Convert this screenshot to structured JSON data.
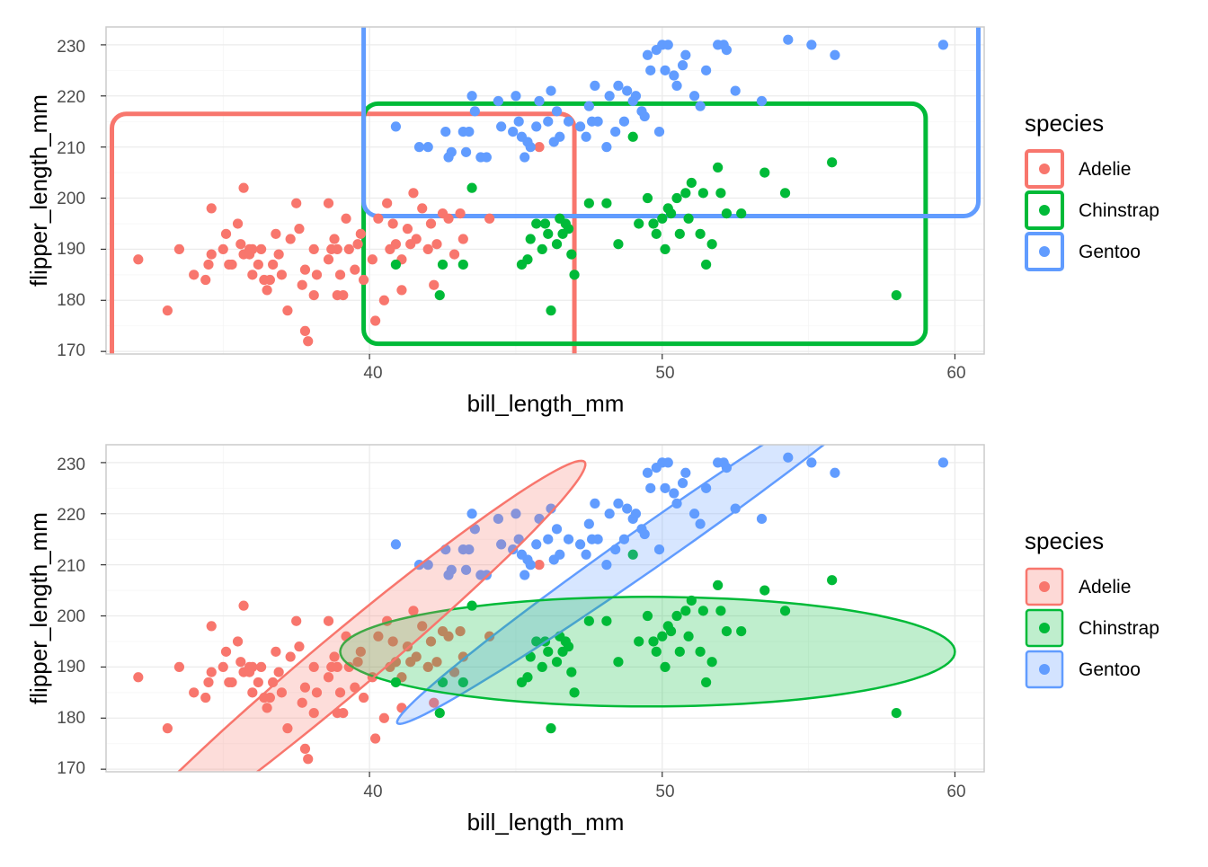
{
  "colors": {
    "Adelie": "#F8766D",
    "Chinstrap": "#00BA38",
    "Gentoo": "#619CFF",
    "grid_major": "#EBEBEB",
    "grid_minor": "#F5F5F5",
    "panel_border": "#CCCCCC",
    "axis_text": "#4D4D4D"
  },
  "chart_data": [
    {
      "type": "scatter",
      "annotation": "rounded bounding rectangles per species",
      "xlabel": "bill_length_mm",
      "ylabel": "flipper_length_mm",
      "xlim": [
        31.0,
        61.0
      ],
      "ylim": [
        169.5,
        233.5
      ],
      "x_ticks": [
        40,
        50,
        60
      ],
      "y_ticks": [
        170,
        180,
        190,
        200,
        210,
        220,
        230
      ],
      "grid": true,
      "legend": {
        "title": "species",
        "position": "right",
        "entries": [
          "Adelie",
          "Chinstrap",
          "Gentoo"
        ]
      },
      "regions": [
        {
          "series": "Adelie",
          "x": [
            31.2,
            47.0
          ],
          "y": [
            166.0,
            216.5
          ]
        },
        {
          "series": "Chinstrap",
          "x": [
            39.8,
            59.0
          ],
          "y": [
            171.5,
            218.5
          ]
        },
        {
          "series": "Gentoo",
          "x": [
            39.8,
            60.8
          ],
          "y": [
            196.5,
            237.0
          ]
        }
      ]
    },
    {
      "type": "scatter",
      "annotation": "filled confidence ellipses per species",
      "xlabel": "bill_length_mm",
      "ylabel": "flipper_length_mm",
      "xlim": [
        31.0,
        61.0
      ],
      "ylim": [
        169.5,
        233.5
      ],
      "x_ticks": [
        40,
        50,
        60
      ],
      "y_ticks": [
        170,
        180,
        190,
        200,
        210,
        220,
        230
      ],
      "grid": true,
      "legend": {
        "title": "species",
        "position": "right",
        "entries": [
          "Adelie",
          "Chinstrap",
          "Gentoo"
        ]
      },
      "ellipses": [
        {
          "series": "Adelie",
          "center": [
            39.0,
            190.0
          ],
          "a": 10.9,
          "b": 10.5,
          "angle_deg": 40
        },
        {
          "series": "Chinstrap",
          "center": [
            49.5,
            193.0
          ],
          "a": 10.5,
          "b": 19.5,
          "angle_deg": 0
        },
        {
          "series": "Gentoo",
          "center": [
            49.8,
            214.5
          ],
          "a": 10.8,
          "b": 7.4,
          "angle_deg": 35
        }
      ]
    }
  ],
  "points": {
    "Adelie": [
      [
        32.1,
        188
      ],
      [
        33.1,
        178
      ],
      [
        33.5,
        190
      ],
      [
        34.0,
        185
      ],
      [
        34.4,
        184
      ],
      [
        34.5,
        187
      ],
      [
        34.6,
        198
      ],
      [
        34.6,
        189
      ],
      [
        35.0,
        190
      ],
      [
        35.1,
        193
      ],
      [
        35.2,
        187
      ],
      [
        35.3,
        187
      ],
      [
        35.5,
        195
      ],
      [
        35.6,
        191
      ],
      [
        35.7,
        189
      ],
      [
        35.7,
        202
      ],
      [
        35.9,
        190
      ],
      [
        35.9,
        189
      ],
      [
        36.0,
        185
      ],
      [
        36.0,
        190
      ],
      [
        36.2,
        187
      ],
      [
        36.3,
        190
      ],
      [
        36.4,
        184
      ],
      [
        36.5,
        182
      ],
      [
        36.6,
        184
      ],
      [
        36.7,
        187
      ],
      [
        36.8,
        193
      ],
      [
        36.9,
        189
      ],
      [
        37.0,
        185
      ],
      [
        37.2,
        178
      ],
      [
        37.3,
        192
      ],
      [
        37.5,
        199
      ],
      [
        37.6,
        194
      ],
      [
        37.7,
        183
      ],
      [
        37.8,
        174
      ],
      [
        37.8,
        186
      ],
      [
        37.9,
        172
      ],
      [
        38.1,
        181
      ],
      [
        38.1,
        190
      ],
      [
        38.2,
        185
      ],
      [
        38.6,
        188
      ],
      [
        38.6,
        199
      ],
      [
        38.7,
        190
      ],
      [
        38.8,
        192
      ],
      [
        38.9,
        181
      ],
      [
        38.9,
        190
      ],
      [
        39.0,
        185
      ],
      [
        39.1,
        181
      ],
      [
        39.2,
        196
      ],
      [
        39.3,
        190
      ],
      [
        39.5,
        186
      ],
      [
        39.6,
        191
      ],
      [
        39.7,
        193
      ],
      [
        39.8,
        184
      ],
      [
        40.1,
        188
      ],
      [
        40.2,
        176
      ],
      [
        40.3,
        196
      ],
      [
        40.5,
        180
      ],
      [
        40.6,
        199
      ],
      [
        40.7,
        190
      ],
      [
        40.8,
        195
      ],
      [
        40.9,
        191
      ],
      [
        41.1,
        188
      ],
      [
        41.1,
        182
      ],
      [
        41.3,
        194
      ],
      [
        41.4,
        191
      ],
      [
        41.5,
        201
      ],
      [
        41.6,
        192
      ],
      [
        41.8,
        198
      ],
      [
        42.0,
        190
      ],
      [
        42.1,
        195
      ],
      [
        42.2,
        183
      ],
      [
        42.3,
        191
      ],
      [
        42.5,
        197
      ],
      [
        42.7,
        196
      ],
      [
        42.9,
        189
      ],
      [
        43.1,
        197
      ],
      [
        43.2,
        192
      ],
      [
        44.1,
        196
      ],
      [
        45.8,
        210
      ]
    ],
    "Chinstrap": [
      [
        40.9,
        187
      ],
      [
        42.4,
        181
      ],
      [
        42.5,
        187
      ],
      [
        43.2,
        187
      ],
      [
        43.5,
        202
      ],
      [
        45.2,
        187
      ],
      [
        45.4,
        188
      ],
      [
        45.5,
        192
      ],
      [
        45.7,
        195
      ],
      [
        45.9,
        190
      ],
      [
        46.0,
        195
      ],
      [
        46.1,
        193
      ],
      [
        46.2,
        178
      ],
      [
        46.4,
        191
      ],
      [
        46.5,
        196
      ],
      [
        46.6,
        193
      ],
      [
        46.7,
        195
      ],
      [
        46.8,
        194
      ],
      [
        46.9,
        189
      ],
      [
        47.0,
        185
      ],
      [
        47.5,
        199
      ],
      [
        48.1,
        199
      ],
      [
        48.5,
        191
      ],
      [
        49.0,
        212
      ],
      [
        49.2,
        195
      ],
      [
        49.5,
        200
      ],
      [
        49.7,
        195
      ],
      [
        49.8,
        193
      ],
      [
        50.0,
        196
      ],
      [
        50.1,
        190
      ],
      [
        50.2,
        198
      ],
      [
        50.3,
        197
      ],
      [
        50.5,
        200
      ],
      [
        50.6,
        193
      ],
      [
        50.8,
        201
      ],
      [
        50.9,
        196
      ],
      [
        51.0,
        203
      ],
      [
        51.3,
        193
      ],
      [
        51.4,
        201
      ],
      [
        51.5,
        187
      ],
      [
        51.7,
        191
      ],
      [
        51.9,
        206
      ],
      [
        52.0,
        201
      ],
      [
        52.2,
        197
      ],
      [
        52.7,
        197
      ],
      [
        53.5,
        205
      ],
      [
        54.2,
        201
      ],
      [
        55.8,
        207
      ],
      [
        58.0,
        181
      ]
    ],
    "Gentoo": [
      [
        40.9,
        214
      ],
      [
        41.7,
        210
      ],
      [
        42.0,
        210
      ],
      [
        42.6,
        213
      ],
      [
        42.7,
        208
      ],
      [
        42.8,
        209
      ],
      [
        43.2,
        213
      ],
      [
        43.3,
        209
      ],
      [
        43.4,
        213
      ],
      [
        43.5,
        220
      ],
      [
        43.6,
        217
      ],
      [
        43.8,
        208
      ],
      [
        44.0,
        208
      ],
      [
        44.4,
        219
      ],
      [
        44.5,
        214
      ],
      [
        44.9,
        213
      ],
      [
        45.0,
        220
      ],
      [
        45.1,
        215
      ],
      [
        45.2,
        212
      ],
      [
        45.3,
        208
      ],
      [
        45.4,
        211
      ],
      [
        45.5,
        210
      ],
      [
        45.7,
        214
      ],
      [
        45.8,
        219
      ],
      [
        46.1,
        215
      ],
      [
        46.2,
        221
      ],
      [
        46.3,
        211
      ],
      [
        46.4,
        217
      ],
      [
        46.5,
        212
      ],
      [
        46.8,
        215
      ],
      [
        47.2,
        214
      ],
      [
        47.4,
        212
      ],
      [
        47.5,
        218
      ],
      [
        47.6,
        215
      ],
      [
        47.7,
        222
      ],
      [
        47.8,
        215
      ],
      [
        48.1,
        210
      ],
      [
        48.2,
        220
      ],
      [
        48.4,
        213
      ],
      [
        48.5,
        222
      ],
      [
        48.7,
        215
      ],
      [
        48.8,
        221
      ],
      [
        49.0,
        219
      ],
      [
        49.1,
        220
      ],
      [
        49.3,
        217
      ],
      [
        49.4,
        216
      ],
      [
        49.5,
        228
      ],
      [
        49.6,
        225
      ],
      [
        49.8,
        229
      ],
      [
        49.9,
        213
      ],
      [
        50.0,
        230
      ],
      [
        50.1,
        225
      ],
      [
        50.2,
        230
      ],
      [
        50.4,
        224
      ],
      [
        50.5,
        222
      ],
      [
        50.7,
        226
      ],
      [
        50.8,
        228
      ],
      [
        51.1,
        220
      ],
      [
        51.3,
        218
      ],
      [
        51.5,
        225
      ],
      [
        51.9,
        230
      ],
      [
        52.1,
        230
      ],
      [
        52.2,
        229
      ],
      [
        52.5,
        221
      ],
      [
        53.4,
        219
      ],
      [
        54.3,
        231
      ],
      [
        55.1,
        230
      ],
      [
        55.9,
        228
      ],
      [
        59.6,
        230
      ]
    ]
  },
  "panels": [
    {
      "x_tick_labels": [
        "40",
        "50",
        "60"
      ],
      "y_tick_labels": [
        "170",
        "180",
        "190",
        "200",
        "210",
        "220",
        "230"
      ],
      "xlabel": "bill_length_mm",
      "ylabel": "flipper_length_mm",
      "legend": {
        "title": "species",
        "items": [
          "Adelie",
          "Chinstrap",
          "Gentoo"
        ]
      }
    },
    {
      "x_tick_labels": [
        "40",
        "50",
        "60"
      ],
      "y_tick_labels": [
        "170",
        "180",
        "190",
        "200",
        "210",
        "220",
        "230"
      ],
      "xlabel": "bill_length_mm",
      "ylabel": "flipper_length_mm",
      "legend": {
        "title": "species",
        "items": [
          "Adelie",
          "Chinstrap",
          "Gentoo"
        ]
      }
    }
  ]
}
